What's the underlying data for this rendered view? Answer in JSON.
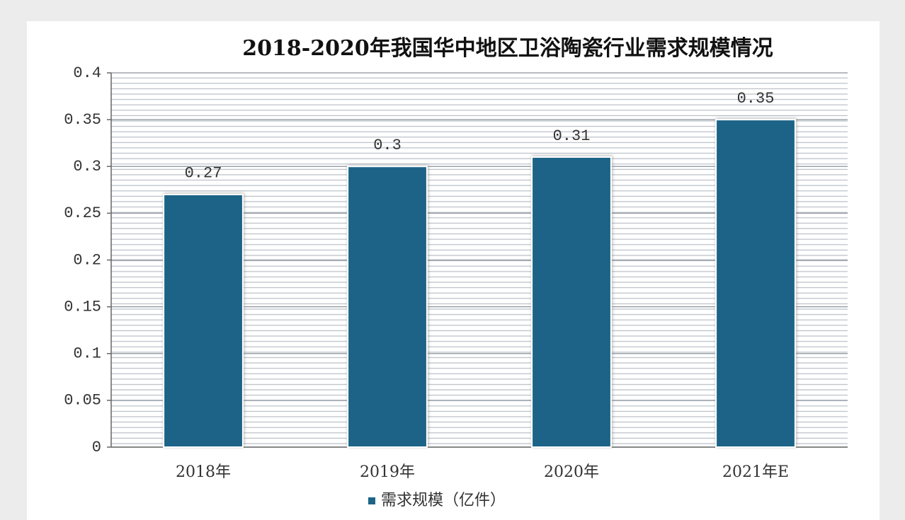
{
  "chart_data": {
    "type": "bar",
    "title": "2018-2020年我国华中地区卫浴陶瓷行业需求规模情况",
    "categories": [
      "2018年",
      "2019年",
      "2020年",
      "2021年E"
    ],
    "series": [
      {
        "name": "需求规模（亿件）",
        "color": "#1b6487",
        "values": [
          0.27,
          0.3,
          0.31,
          0.35
        ]
      }
    ],
    "ylim": [
      0,
      0.4
    ],
    "yticks": [
      0,
      0.05,
      0.1,
      0.15,
      0.2,
      0.25,
      0.3,
      0.35,
      0.4
    ],
    "grid": true,
    "legend": "bottom"
  }
}
